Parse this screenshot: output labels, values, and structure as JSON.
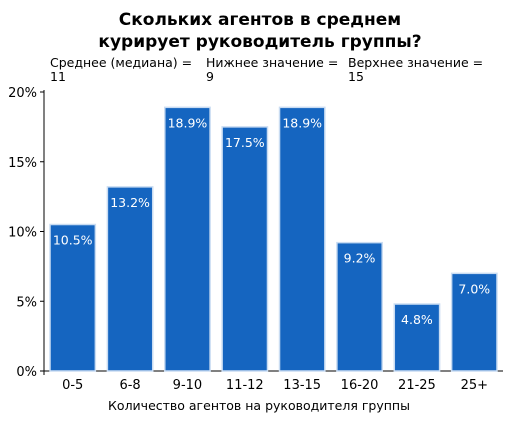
{
  "chart_data": {
    "type": "bar",
    "title_lines": [
      "Скольких агентов в среднем",
      "курирует руководитель группы?"
    ],
    "stats": [
      {
        "label": "Среднее (медиана) =",
        "value": "11"
      },
      {
        "label": "Нижнее значение =",
        "value": "9"
      },
      {
        "label": "Верхнее значение =",
        "value": "15"
      }
    ],
    "categories": [
      "0-5",
      "6-8",
      "9-10",
      "11-12",
      "13-15",
      "16-20",
      "21-25",
      "25+"
    ],
    "values": [
      10.5,
      13.2,
      18.9,
      17.5,
      18.9,
      9.2,
      4.8,
      7.0
    ],
    "value_labels": [
      "10.5%",
      "13.2%",
      "18.9%",
      "17.5%",
      "18.9%",
      "9.2%",
      "4.8%",
      "7.0%"
    ],
    "xlabel": "Количество агентов на руководителя группы",
    "ylabel": "",
    "ylim": [
      0,
      20
    ],
    "yticks": [
      0,
      5,
      10,
      15,
      20
    ],
    "ytick_labels": [
      "0%",
      "5%",
      "10%",
      "15%",
      "20%"
    ],
    "grid": false,
    "bar_color": "#1565c0",
    "bar_edge_color": "#c9dcf2"
  }
}
